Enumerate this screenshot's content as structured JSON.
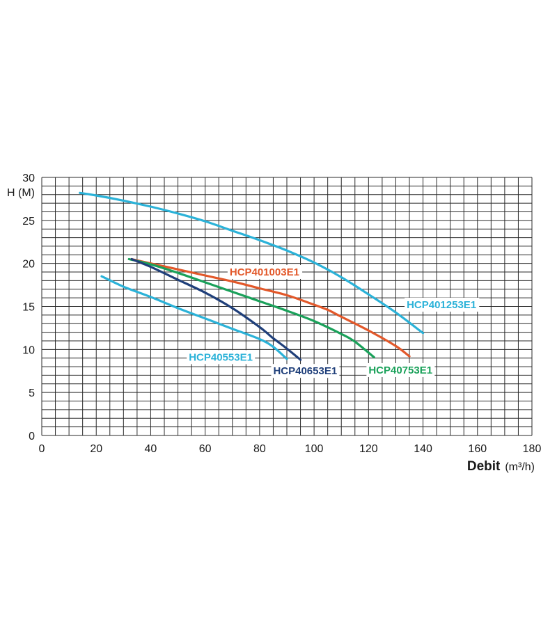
{
  "chart_data": {
    "type": "line",
    "ylabel": "H (M)",
    "xlabel": "Debit",
    "xlabel_unit": "(m³/h)",
    "xlim": [
      0,
      180
    ],
    "ylim": [
      0,
      30
    ],
    "x_ticks": [
      0,
      20,
      40,
      60,
      80,
      100,
      120,
      140,
      160,
      180
    ],
    "y_ticks": [
      0,
      5,
      10,
      15,
      20,
      25,
      30
    ],
    "x_minor_step": 5,
    "y_minor_step": 1,
    "grid": true,
    "series": [
      {
        "name": "HCP401253E1",
        "color": "#2bb2d8",
        "x": [
          14,
          20,
          30,
          40,
          50,
          60,
          70,
          80,
          90,
          100,
          110,
          120,
          130,
          140
        ],
        "y": [
          28.2,
          27.9,
          27.3,
          26.6,
          25.8,
          24.9,
          23.8,
          22.7,
          21.5,
          20.1,
          18.4,
          16.4,
          14.3,
          11.9
        ]
      },
      {
        "name": "HCP401003E1",
        "color": "#e2582a",
        "x": [
          33,
          40,
          50,
          60,
          70,
          80,
          90,
          100,
          105,
          110,
          120,
          130,
          135
        ],
        "y": [
          20.5,
          20.0,
          19.3,
          18.6,
          17.9,
          17.1,
          16.3,
          15.2,
          14.6,
          13.8,
          12.2,
          10.4,
          9.2
        ]
      },
      {
        "name": "HCP40753E1",
        "color": "#1aa15a",
        "x": [
          32,
          40,
          50,
          60,
          70,
          80,
          90,
          100,
          110,
          115,
          122
        ],
        "y": [
          20.5,
          19.9,
          18.9,
          17.8,
          16.7,
          15.6,
          14.5,
          13.3,
          11.8,
          10.9,
          9.1
        ]
      },
      {
        "name": "HCP40653E1",
        "color": "#1f3f7a",
        "x": [
          33,
          40,
          50,
          60,
          70,
          80,
          85,
          90,
          95
        ],
        "y": [
          20.5,
          19.6,
          18.1,
          16.6,
          14.8,
          12.6,
          11.3,
          10.1,
          8.8
        ]
      },
      {
        "name": "HCP40553E1",
        "color": "#2bb2d8",
        "x": [
          22,
          30,
          40,
          50,
          60,
          70,
          80,
          85,
          90
        ],
        "y": [
          18.5,
          17.3,
          16.1,
          14.8,
          13.6,
          12.4,
          11.2,
          10.3,
          8.9
        ]
      }
    ],
    "annotations": [
      {
        "text": "HCP401003E1",
        "color": "#e2582a",
        "x": 69,
        "y": 18.6
      },
      {
        "text": "HCP401253E1",
        "color": "#2bb2d8",
        "x": 134,
        "y": 14.8
      },
      {
        "text": "HCP40553E1",
        "color": "#2bb2d8",
        "x": 54,
        "y": 8.7
      },
      {
        "text": "HCP40653E1",
        "color": "#1f3f7a",
        "x": 85,
        "y": 7.1
      },
      {
        "text": "HCP40753E1",
        "color": "#1aa15a",
        "x": 120,
        "y": 7.2
      }
    ]
  }
}
